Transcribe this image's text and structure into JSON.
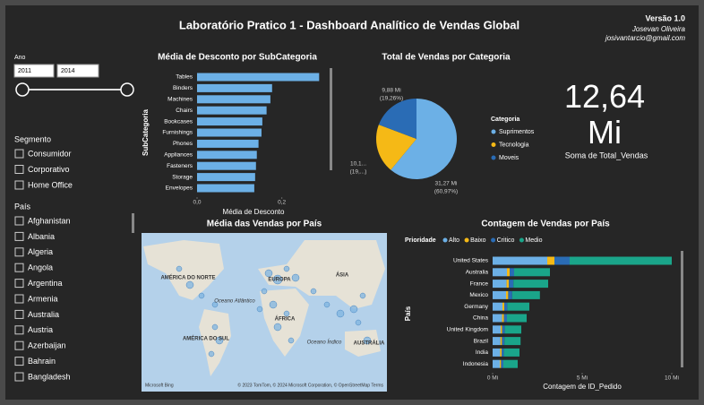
{
  "header": {
    "title": "Laboratório Pratico 1 -  Dashboard Analítico de Vendas Global",
    "version": "Versão 1.0",
    "author": "Josevan Oliveira",
    "email": "josivantarcio@gmail.com"
  },
  "year_slicer": {
    "label": "Ano",
    "from": "2011",
    "to": "2014"
  },
  "segment_slicer": {
    "label": "Segmento",
    "items": [
      "Consumidor",
      "Corporativo",
      "Home Office"
    ]
  },
  "country_slicer": {
    "label": "País",
    "items": [
      "Afghanistan",
      "Albania",
      "Algeria",
      "Angola",
      "Argentina",
      "Armenia",
      "Australia",
      "Austria",
      "Azerbaijan",
      "Bahrain",
      "Bangladesh"
    ]
  },
  "card": {
    "value": 12.64,
    "value_label": "12,64 Mi",
    "caption": "Soma de Total_Vendas"
  },
  "map": {
    "title": "Média das Vendas por País",
    "labels": [
      "AMÉRICA DO NORTE",
      "EUROPA",
      "ÁSIA",
      "ÁFRICA",
      "AMÉRICA DO SUL",
      "Oceano Atlântico",
      "Oceano Índico",
      "AUSTRÁLIA"
    ],
    "attribution": "Microsoft Bing",
    "copyright": "© 2023 TomTom, © 2024 Microsoft Corporation, © OpenStreetMap  Terms"
  },
  "chart_data": [
    {
      "type": "bar",
      "horizontal": true,
      "title": "Média de Desconto por SubCategoria",
      "x_label": "Média de Desconto",
      "y_label": "SubCategoria",
      "color": "#6cb0e6",
      "categories": [
        "Tables",
        "Binders",
        "Machines",
        "Chairs",
        "Bookcases",
        "Furnishings",
        "Phones",
        "Appliances",
        "Fasteners",
        "Storage",
        "Envelopes"
      ],
      "values": [
        0.288,
        0.177,
        0.173,
        0.164,
        0.154,
        0.152,
        0.145,
        0.141,
        0.139,
        0.137,
        0.135
      ],
      "xlim": [
        0,
        0.3
      ],
      "xticks": [
        {
          "value": 0,
          "label": "0,0"
        },
        {
          "value": 0.2,
          "label": "0,2"
        }
      ]
    },
    {
      "type": "pie",
      "title": "Total de Vendas por Categoria",
      "legend_title": "Categoria",
      "categories": [
        "Suprimentos",
        "Tecnologia",
        "Moveis"
      ],
      "values": [
        31.27,
        10.1,
        9.88
      ],
      "value_labels": [
        [
          "31,27 Mi",
          "(60,97%)"
        ],
        [
          "10,1...",
          "(19,...)"
        ],
        [
          "9,88 Mi",
          "(19,26%)"
        ]
      ],
      "colors": [
        "#6cb0e6",
        "#f5b916",
        "#2a6cb5"
      ]
    },
    {
      "type": "bar",
      "horizontal": true,
      "stacked": true,
      "title": "Contagem de Vendas por País",
      "legend_title": "Prioridade",
      "x_label": "Contagem de ID_Pedido",
      "y_label": "País",
      "categories": [
        "United States",
        "Australia",
        "France",
        "Mexico",
        "Germany",
        "China",
        "United Kingdom",
        "Brazil",
        "India",
        "Indonesia"
      ],
      "series": [
        {
          "name": "Alto",
          "color": "#6cb0e6",
          "values": [
            3.05,
            0.8,
            0.78,
            0.75,
            0.55,
            0.53,
            0.45,
            0.44,
            0.42,
            0.4
          ]
        },
        {
          "name": "Baixo",
          "color": "#f5b916",
          "values": [
            0.4,
            0.15,
            0.13,
            0.12,
            0.1,
            0.1,
            0.08,
            0.08,
            0.08,
            0.07
          ]
        },
        {
          "name": "Critico",
          "color": "#2a6cb5",
          "values": [
            0.85,
            0.25,
            0.25,
            0.22,
            0.17,
            0.17,
            0.15,
            0.14,
            0.13,
            0.13
          ]
        },
        {
          "name": "Medio",
          "color": "#1aa58a",
          "values": [
            5.7,
            2.0,
            1.94,
            1.55,
            1.23,
            1.1,
            0.92,
            0.9,
            0.87,
            0.8
          ]
        }
      ],
      "xlim": [
        0,
        10.5
      ],
      "xticks": [
        {
          "value": 0,
          "label": "0 Mi"
        },
        {
          "value": 5,
          "label": "5 Mi"
        },
        {
          "value": 10,
          "label": "10 Mi"
        }
      ]
    }
  ]
}
